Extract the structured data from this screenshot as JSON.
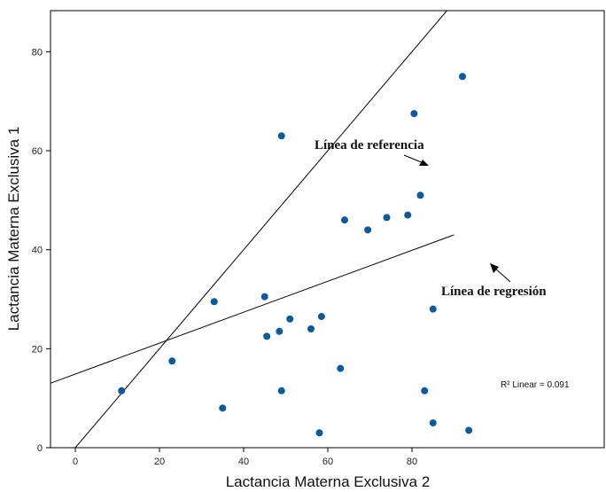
{
  "chart_data": {
    "type": "scatter",
    "title": "",
    "xlabel": "Lactancia Materna Exclusiva 2",
    "ylabel": "Lactancia Materna Exclusiva 1",
    "xlim": [
      -6,
      84
    ],
    "ylim": [
      0,
      90
    ],
    "x_ticks": [
      0,
      20,
      40,
      60,
      80
    ],
    "y_ticks": [
      0,
      20,
      40,
      60,
      80
    ],
    "grid": false,
    "point_color": "#0a5a9c",
    "points": [
      {
        "x": 11,
        "y": 11.5
      },
      {
        "x": 23,
        "y": 17.5
      },
      {
        "x": 33,
        "y": 29.5
      },
      {
        "x": 35,
        "y": 8
      },
      {
        "x": 45,
        "y": 30.5
      },
      {
        "x": 45.5,
        "y": 22.5
      },
      {
        "x": 48.5,
        "y": 23.5
      },
      {
        "x": 49,
        "y": 11.5
      },
      {
        "x": 51,
        "y": 26
      },
      {
        "x": 56,
        "y": 24
      },
      {
        "x": 58,
        "y": 3
      },
      {
        "x": 58.5,
        "y": 26.5
      },
      {
        "x": 63,
        "y": 16
      },
      {
        "x": 64,
        "y": 46
      },
      {
        "x": 69.5,
        "y": 44
      },
      {
        "x": 74,
        "y": 46.5
      },
      {
        "x": 79,
        "y": 47
      },
      {
        "x": 49,
        "y": 63
      },
      {
        "x": 80.5,
        "y": 67.5
      },
      {
        "x": 82,
        "y": 51
      },
      {
        "x": 83,
        "y": 11.5
      },
      {
        "x": 85,
        "y": 5
      },
      {
        "x": 85,
        "y": 28
      },
      {
        "x": 92,
        "y": 75
      },
      {
        "x": 93.5,
        "y": 3.5
      }
    ],
    "reference_line": {
      "x": [
        0,
        90
      ],
      "y": [
        0,
        90
      ]
    },
    "regression_line": {
      "x": [
        -6,
        90
      ],
      "y": [
        13,
        43
      ]
    },
    "annotations": {
      "reference": "Línea de referencia",
      "regression": "Línea de regresión",
      "r2": "R² Linear = 0.091"
    }
  }
}
